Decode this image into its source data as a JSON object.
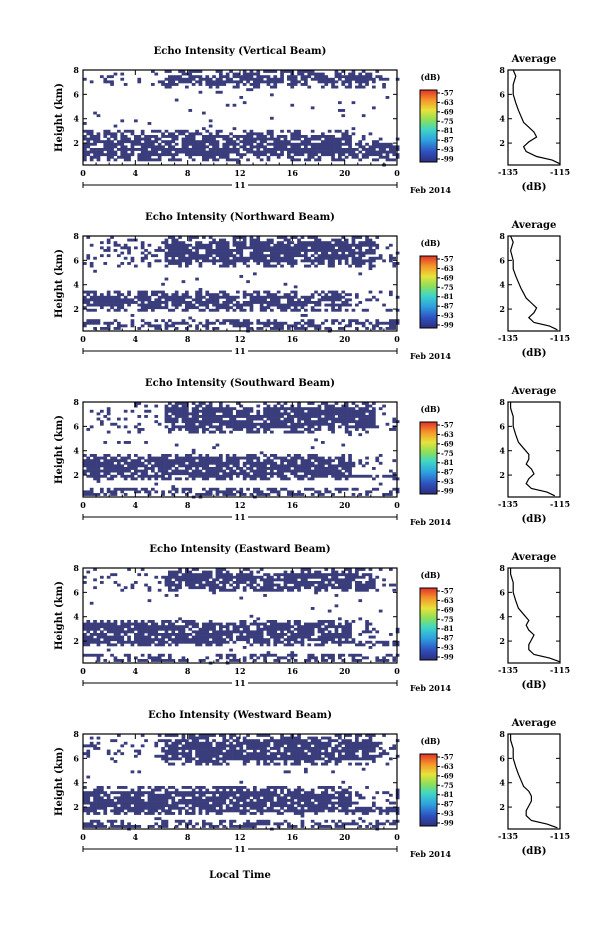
{
  "chart_data": [
    {
      "type": "heatmap",
      "title": "Echo Intensity (Vertical Beam)",
      "ylabel": "Height (km)",
      "x_ticks": [
        "0",
        "4",
        "8",
        "12",
        "16",
        "20",
        "0"
      ],
      "date_label": "11",
      "month_label": "Feb 2014",
      "y_ticks": [
        "8",
        "6",
        "4",
        "2"
      ],
      "ylim": [
        0.2,
        8
      ],
      "colorbar": {
        "unit": "(dB)",
        "ticks": [
          "-57",
          "-63",
          "-69",
          "-75",
          "-81",
          "-87",
          "-93",
          "-99"
        ]
      },
      "echo_layers_km": [
        [
          0.6,
          3.0
        ],
        [
          6.5,
          8.0
        ]
      ],
      "average_profile": {
        "title": "Average",
        "xlabel": "(dB)",
        "x_ticks": [
          "-135",
          "-115"
        ],
        "y_ticks": [
          "8",
          "6",
          "4",
          "2"
        ],
        "xlim": [
          -135,
          -115
        ],
        "ylim": [
          0.2,
          8
        ],
        "height_km": [
          0.3,
          0.6,
          0.9,
          1.3,
          1.7,
          2.1,
          2.5,
          2.9,
          3.3,
          3.7,
          4.2,
          4.7,
          5.3,
          6.0,
          6.8,
          7.5,
          8.0
        ],
        "db": [
          -115,
          -118,
          -124,
          -128,
          -129,
          -127,
          -124,
          -125,
          -127,
          -129,
          -130,
          -131,
          -132,
          -133,
          -133,
          -132,
          -133
        ]
      }
    },
    {
      "type": "heatmap",
      "title": "Echo Intensity (Northward Beam)",
      "ylabel": "Height (km)",
      "x_ticks": [
        "0",
        "4",
        "8",
        "12",
        "16",
        "20",
        "0"
      ],
      "date_label": "11",
      "month_label": "Feb 2014",
      "y_ticks": [
        "8",
        "6",
        "4",
        "2"
      ],
      "ylim": [
        0.2,
        8
      ],
      "colorbar": {
        "unit": "(dB)",
        "ticks": [
          "-57",
          "-63",
          "-69",
          "-75",
          "-81",
          "-87",
          "-93",
          "-99"
        ]
      },
      "echo_layers_km": [
        [
          0.4,
          1.1
        ],
        [
          1.9,
          3.5
        ],
        [
          5.5,
          8.0
        ]
      ],
      "average_profile": {
        "title": "Average",
        "xlabel": "(dB)",
        "x_ticks": [
          "-135",
          "-115"
        ],
        "y_ticks": [
          "8",
          "6",
          "4",
          "2"
        ],
        "xlim": [
          -135,
          -115
        ],
        "ylim": [
          0.2,
          8
        ],
        "height_km": [
          0.3,
          0.6,
          0.9,
          1.3,
          1.7,
          2.1,
          2.5,
          2.9,
          3.3,
          3.7,
          4.2,
          4.7,
          5.3,
          6.0,
          6.8,
          7.5,
          8.0
        ],
        "db": [
          -116,
          -119,
          -125,
          -127,
          -125,
          -124,
          -126,
          -128,
          -129,
          -130,
          -131,
          -132,
          -133,
          -133,
          -134,
          -133,
          -134
        ]
      }
    },
    {
      "type": "heatmap",
      "title": "Echo Intensity (Southward Beam)",
      "ylabel": "Height (km)",
      "x_ticks": [
        "0",
        "4",
        "8",
        "12",
        "16",
        "20",
        "0"
      ],
      "date_label": "11",
      "month_label": "Feb 2014",
      "y_ticks": [
        "8",
        "6",
        "4",
        "2"
      ],
      "ylim": [
        0.2,
        8
      ],
      "colorbar": {
        "unit": "(dB)",
        "ticks": [
          "-57",
          "-63",
          "-69",
          "-75",
          "-81",
          "-87",
          "-93",
          "-99"
        ]
      },
      "echo_layers_km": [
        [
          0.4,
          0.9
        ],
        [
          1.5,
          3.8
        ],
        [
          5.5,
          8.0
        ]
      ],
      "average_profile": {
        "title": "Average",
        "xlabel": "(dB)",
        "x_ticks": [
          "-135",
          "-115"
        ],
        "y_ticks": [
          "8",
          "6",
          "4",
          "2"
        ],
        "xlim": [
          -135,
          -115
        ],
        "ylim": [
          0.2,
          8
        ],
        "height_km": [
          0.3,
          0.6,
          0.9,
          1.3,
          1.7,
          2.1,
          2.5,
          2.9,
          3.3,
          3.7,
          4.2,
          4.7,
          5.3,
          6.0,
          6.8,
          7.5,
          8.0
        ],
        "db": [
          -117,
          -120,
          -126,
          -128,
          -127,
          -125,
          -126,
          -128,
          -127,
          -127,
          -129,
          -131,
          -132,
          -133,
          -133,
          -134,
          -134
        ]
      }
    },
    {
      "type": "heatmap",
      "title": "Echo Intensity (Eastward Beam)",
      "ylabel": "Height (km)",
      "x_ticks": [
        "0",
        "4",
        "8",
        "12",
        "16",
        "20",
        "0"
      ],
      "date_label": "11",
      "month_label": "Feb 2014",
      "y_ticks": [
        "8",
        "6",
        "4",
        "2"
      ],
      "ylim": [
        0.2,
        8
      ],
      "colorbar": {
        "unit": "(dB)",
        "ticks": [
          "-57",
          "-63",
          "-69",
          "-75",
          "-81",
          "-87",
          "-93",
          "-99"
        ]
      },
      "echo_layers_km": [
        [
          0.4,
          0.9
        ],
        [
          1.5,
          3.8
        ],
        [
          6.0,
          8.0
        ]
      ],
      "average_profile": {
        "title": "Average",
        "xlabel": "(dB)",
        "x_ticks": [
          "-135",
          "-115"
        ],
        "y_ticks": [
          "8",
          "6",
          "4",
          "2"
        ],
        "xlim": [
          -135,
          -115
        ],
        "ylim": [
          0.2,
          8
        ],
        "height_km": [
          0.3,
          0.6,
          0.9,
          1.3,
          1.7,
          2.1,
          2.5,
          2.9,
          3.3,
          3.7,
          4.2,
          4.7,
          5.3,
          6.0,
          6.8,
          7.5,
          8.0
        ],
        "db": [
          -115,
          -119,
          -125,
          -127,
          -127,
          -126,
          -125,
          -127,
          -128,
          -127,
          -129,
          -131,
          -132,
          -133,
          -133,
          -134,
          -134
        ]
      }
    },
    {
      "type": "heatmap",
      "title": "Echo Intensity (Westward Beam)",
      "ylabel": "Height (km)",
      "x_ticks": [
        "0",
        "4",
        "8",
        "12",
        "16",
        "20",
        "0"
      ],
      "date_label": "11",
      "month_label": "Feb 2014",
      "y_ticks": [
        "8",
        "6",
        "4",
        "2"
      ],
      "ylim": [
        0.2,
        8
      ],
      "colorbar": {
        "unit": "(dB)",
        "ticks": [
          "-57",
          "-63",
          "-69",
          "-75",
          "-81",
          "-87",
          "-93",
          "-99"
        ]
      },
      "echo_layers_km": [
        [
          0.4,
          0.9
        ],
        [
          1.3,
          3.7
        ],
        [
          5.5,
          8.0
        ]
      ],
      "average_profile": {
        "title": "Average",
        "xlabel": "(dB)",
        "x_ticks": [
          "-135",
          "-115"
        ],
        "y_ticks": [
          "8",
          "6",
          "4",
          "2"
        ],
        "xlim": [
          -135,
          -115
        ],
        "ylim": [
          0.2,
          8
        ],
        "height_km": [
          0.3,
          0.6,
          0.9,
          1.3,
          1.7,
          2.1,
          2.5,
          2.9,
          3.3,
          3.7,
          4.2,
          4.7,
          5.3,
          6.0,
          6.8,
          7.5,
          8.0
        ],
        "db": [
          -116,
          -120,
          -126,
          -128,
          -128,
          -127,
          -126,
          -126,
          -127,
          -129,
          -130,
          -131,
          -132,
          -133,
          -133,
          -134,
          -134
        ]
      }
    }
  ],
  "figure": {
    "xlabel": "Local Time"
  }
}
